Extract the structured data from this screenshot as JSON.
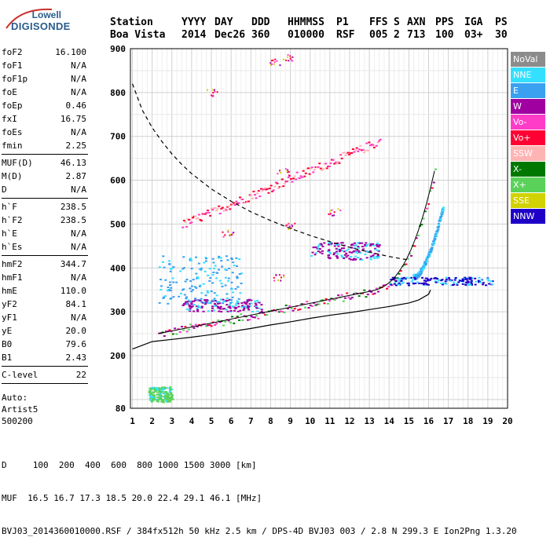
{
  "logo": {
    "line1": "Lowell",
    "line2": "DIGISONDE"
  },
  "header": {
    "labels": [
      "Station",
      "YYYY",
      "DAY",
      "DDD",
      "HHMMSS",
      "P1",
      "FFS",
      "S",
      "AXN",
      "PPS",
      "IGA",
      "PS"
    ],
    "values": [
      "Boa Vista",
      "2014",
      "Dec26",
      "360",
      "010000",
      "RSF",
      "005",
      "2",
      "713",
      "100",
      "03+",
      "30"
    ]
  },
  "params": {
    "group1": [
      {
        "name": "foF2",
        "value": "16.100"
      },
      {
        "name": "foF1",
        "value": "N/A"
      },
      {
        "name": "foF1p",
        "value": "N/A"
      },
      {
        "name": "foE",
        "value": "N/A"
      },
      {
        "name": "foEp",
        "value": "0.46"
      },
      {
        "name": "fxI",
        "value": "16.75"
      },
      {
        "name": "foEs",
        "value": "N/A"
      },
      {
        "name": "fmin",
        "value": "2.25"
      }
    ],
    "group2": [
      {
        "name": "MUF(D)",
        "value": "46.13"
      },
      {
        "name": "M(D)",
        "value": "2.87"
      },
      {
        "name": "D",
        "value": "N/A"
      }
    ],
    "group3": [
      {
        "name": "h`F",
        "value": "238.5"
      },
      {
        "name": "h`F2",
        "value": "238.5"
      },
      {
        "name": "h`E",
        "value": "N/A"
      },
      {
        "name": "h`Es",
        "value": "N/A"
      }
    ],
    "group4": [
      {
        "name": "hmF2",
        "value": "344.7"
      },
      {
        "name": "hmF1",
        "value": "N/A"
      },
      {
        "name": "hmE",
        "value": "110.0"
      },
      {
        "name": "yF2",
        "value": "84.1"
      },
      {
        "name": "yF1",
        "value": "N/A"
      },
      {
        "name": "yE",
        "value": "20.0"
      },
      {
        "name": "B0",
        "value": "79.6"
      },
      {
        "name": "B1",
        "value": "2.43"
      }
    ],
    "group5": [
      {
        "name": "C-level",
        "value": "22"
      }
    ],
    "auto": [
      "Auto:",
      "Artist5",
      "500200"
    ]
  },
  "legend": [
    {
      "label": "NoVal",
      "color": "#8c8c8c"
    },
    {
      "label": "NNE",
      "color": "#33e0ff"
    },
    {
      "label": "E",
      "color": "#3aa0f0"
    },
    {
      "label": "W",
      "color": "#a000a0"
    },
    {
      "label": "Vo-",
      "color": "#ff3cc8"
    },
    {
      "label": "Vo+",
      "color": "#ff0033"
    },
    {
      "label": "SSW",
      "color": "#ffb4b4"
    },
    {
      "label": "X-",
      "color": "#007800"
    },
    {
      "label": "X+",
      "color": "#5ad25a"
    },
    {
      "label": "SSE",
      "color": "#d2d200"
    },
    {
      "label": "NNW",
      "color": "#1e00c8"
    }
  ],
  "chart_data": {
    "type": "scatter",
    "x_ticks": [
      1,
      2,
      3,
      4,
      5,
      6,
      7,
      8,
      9,
      10,
      11,
      12,
      13,
      14,
      15,
      16,
      17,
      18,
      19,
      20
    ],
    "y_ticks": [
      80,
      200,
      300,
      400,
      500,
      600,
      700,
      800,
      900
    ],
    "xlim": [
      0.9,
      20
    ],
    "ylim": [
      80,
      900
    ],
    "grid": true,
    "profile_curve": {
      "x": [
        1.0,
        2,
        3,
        4,
        5,
        6,
        7,
        8,
        9,
        10,
        11,
        12,
        13,
        14,
        15,
        15.5,
        16,
        16.1
      ],
      "y": [
        215,
        232,
        237,
        242,
        248,
        255,
        262,
        270,
        277,
        285,
        292,
        298,
        305,
        312,
        320,
        327,
        340,
        350
      ]
    },
    "muf_curve": {
      "x": [
        1.0,
        1.5,
        2,
        2.5,
        3,
        3.5,
        4,
        5,
        6,
        7,
        8,
        9,
        10,
        11,
        12,
        13,
        14,
        15
      ],
      "y": [
        820,
        760,
        720,
        688,
        660,
        636,
        615,
        580,
        552,
        528,
        508,
        490,
        474,
        460,
        447,
        436,
        426,
        418
      ]
    },
    "traces": [
      {
        "series": "Vo+",
        "x_start": 2.3,
        "x_end": 16.3,
        "y_start": 250,
        "y_end": 480
      },
      {
        "series": "E",
        "x_start": 15.2,
        "x_end": 16.7,
        "y_start": 380,
        "y_end": 540
      },
      {
        "series": "Vo+",
        "x_start": 3.5,
        "x_end": 13.5,
        "y_start": 500,
        "y_end": 690
      },
      {
        "series": "W",
        "x_start": 3.5,
        "x_end": 7.5,
        "y_start": 302,
        "y_end": 330
      },
      {
        "series": "E",
        "x_start": 2.3,
        "x_end": 6.5,
        "y_start": 320,
        "y_end": 430
      },
      {
        "series": "NNW",
        "x_start": 14.0,
        "x_end": 19.2,
        "y_start": 362,
        "y_end": 380
      },
      {
        "series": "W",
        "x_start": 10.0,
        "x_end": 13.5,
        "y_start": 420,
        "y_end": 460
      },
      {
        "series": "X+",
        "x_start": 1.8,
        "x_end": 3.0,
        "y_start": 95,
        "y_end": 130
      }
    ]
  },
  "footer": {
    "line1": "D     100  200  400  600  800 1000 1500 3000 [km]",
    "line2": "MUF  16.5 16.7 17.3 18.5 20.0 22.4 29.1 46.1 [MHz]",
    "line3": "BVJ03_2014360010000.RSF / 384fx512h 50 kHz 2.5 km / DPS-4D BVJ03 003 / 2.8 N 299.3 E Ion2Png 1.3.20"
  }
}
